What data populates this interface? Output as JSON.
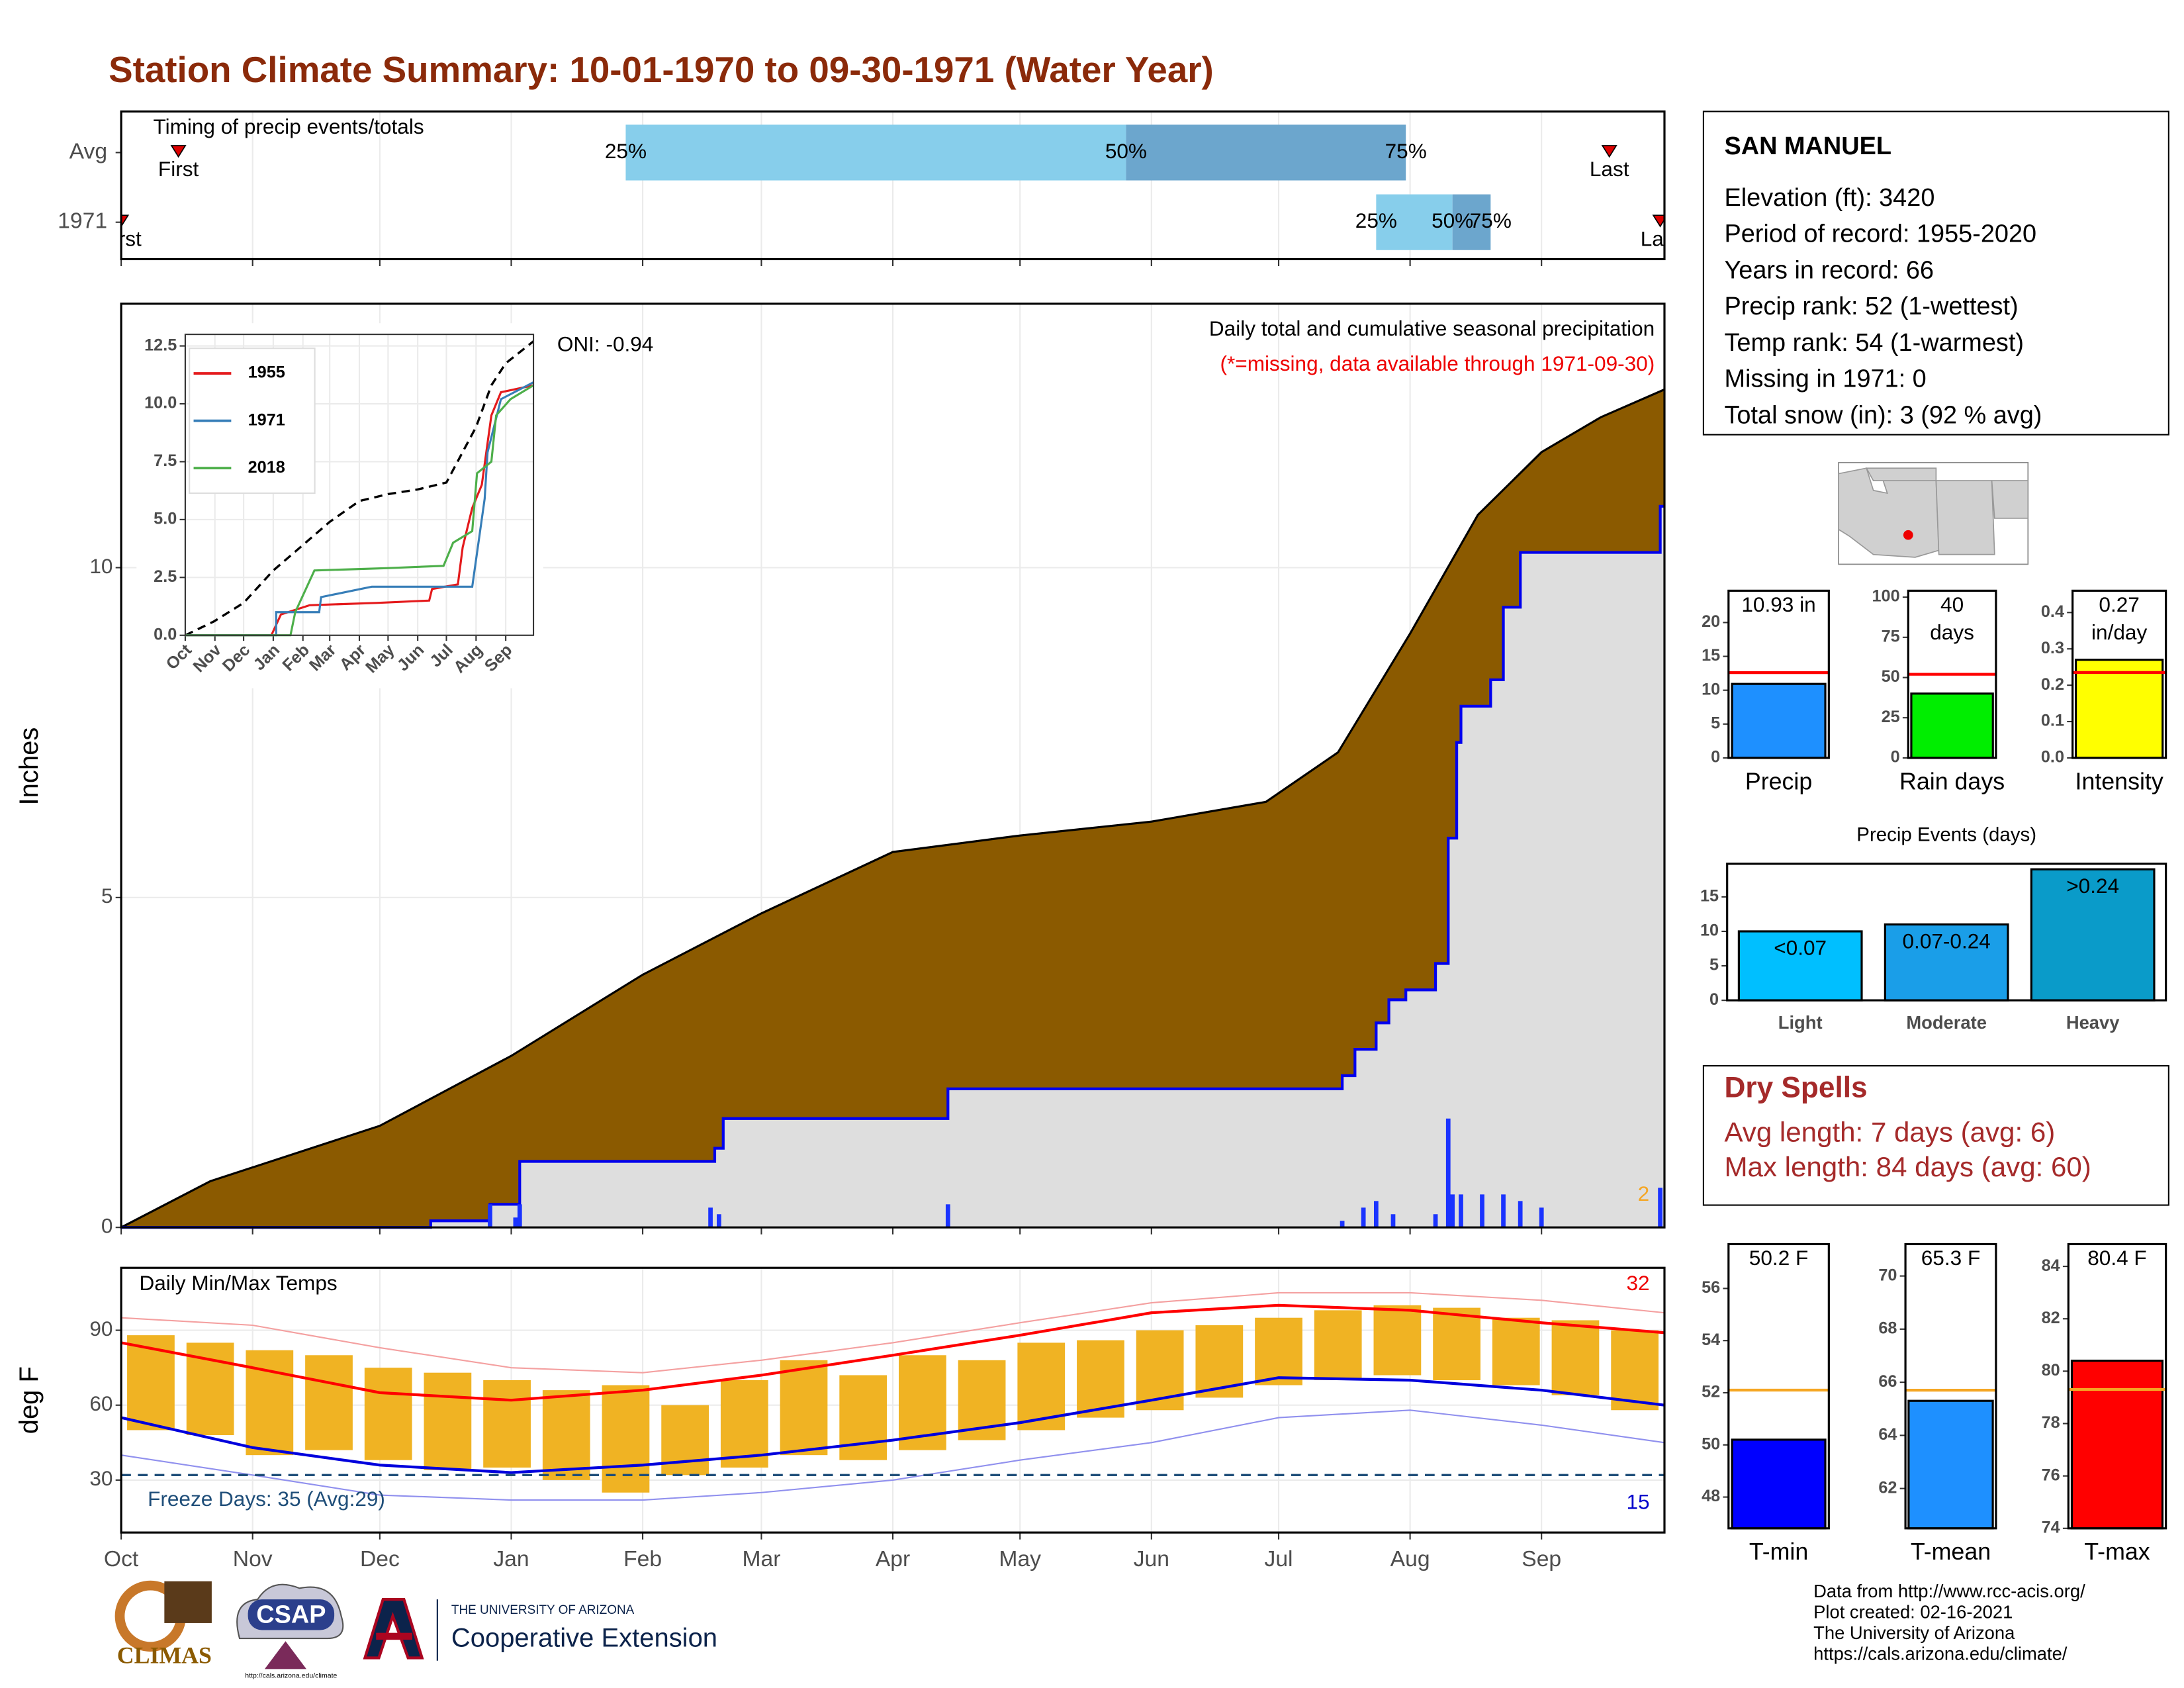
{
  "title": "Station Climate Summary: 10-01-1970 to 09-30-1971 (Water Year)",
  "chart_data": [
    {
      "type": "timeline",
      "title": "Timing of precip events/totals",
      "categories": [
        "Avg",
        "1971"
      ],
      "xlim": [
        0,
        364
      ],
      "xgrid": [
        0,
        31,
        61,
        92,
        123,
        151,
        182,
        212,
        243,
        273,
        304,
        335
      ],
      "percentiles": {
        "labels": [
          "25%",
          "50%",
          "75%"
        ],
        "rows": [
          [
            119,
            237,
            303
          ],
          [
            296,
            314,
            323
          ]
        ]
      },
      "first": [
        13.5,
        0
      ],
      "last": [
        351,
        363
      ],
      "first_label": "First",
      "last_label": "Last",
      "colors": [
        "#87ceeb",
        "#6ca6cd"
      ],
      "marker_color": "#dd0000"
    },
    {
      "type": "area",
      "title": "Daily total and cumulative seasonal precipitation",
      "subtitle": "(*=missing, data available through 1971-09-30)",
      "annotation": "ONI: -0.94",
      "ylabel": "Inches",
      "xlim": [
        0,
        364
      ],
      "ylim": [
        0,
        14
      ],
      "yticks": [
        0,
        5,
        10
      ],
      "xgrid": [
        0,
        31,
        61,
        92,
        123,
        151,
        182,
        212,
        243,
        273,
        304,
        335
      ],
      "note_count": 2,
      "normal": {
        "color": "#8b5a00",
        "x": [
          0,
          21,
          61,
          92,
          123,
          151,
          182,
          212,
          243,
          270,
          287,
          304,
          320,
          335,
          349,
          364
        ],
        "values": [
          0,
          0.7,
          1.54,
          2.6,
          3.83,
          4.76,
          5.69,
          5.94,
          6.15,
          6.45,
          7.2,
          9.0,
          10.8,
          11.75,
          12.28,
          12.7
        ]
      },
      "cumulative": {
        "color": "#0000ee",
        "fill": "#dedede",
        "x": [
          0,
          73,
          73,
          87,
          87,
          94,
          94,
          140,
          140,
          142,
          142,
          195,
          195,
          288,
          288,
          291,
          291,
          296,
          296,
          299,
          299,
          303,
          303,
          310,
          310,
          313,
          313,
          315,
          315,
          316,
          316,
          323,
          323,
          326,
          326,
          330,
          330,
          363,
          363,
          364
        ],
        "values": [
          0,
          0,
          0.1,
          0.1,
          0.35,
          0.35,
          1.0,
          1.0,
          1.2,
          1.2,
          1.65,
          1.65,
          2.1,
          2.1,
          2.3,
          2.3,
          2.7,
          2.7,
          3.1,
          3.1,
          3.45,
          3.45,
          3.6,
          3.6,
          4.0,
          4.0,
          5.9,
          5.9,
          7.35,
          7.35,
          7.9,
          7.9,
          8.3,
          8.3,
          9.4,
          9.4,
          10.23,
          10.23,
          10.93,
          10.93
        ]
      },
      "daily": {
        "color": "#1a33ff",
        "x": [
          87,
          93,
          94,
          139,
          141,
          195,
          288,
          293,
          296,
          300,
          310,
          313,
          314,
          316,
          321,
          326,
          330,
          335,
          363
        ],
        "values": [
          0.35,
          0.15,
          0.35,
          0.3,
          0.2,
          0.35,
          0.1,
          0.3,
          0.4,
          0.2,
          0.2,
          1.65,
          0.5,
          0.5,
          0.5,
          0.5,
          0.4,
          0.3,
          0.6
        ]
      }
    },
    {
      "type": "line",
      "xlim": [
        0,
        364
      ],
      "ylim": [
        0,
        13
      ],
      "xticks": [
        {
          "value": 0,
          "label": "Oct"
        },
        {
          "value": 31,
          "label": "Nov"
        },
        {
          "value": 61,
          "label": "Dec"
        },
        {
          "value": 92,
          "label": "Jan"
        },
        {
          "value": 123,
          "label": "Feb"
        },
        {
          "value": 151,
          "label": "Mar"
        },
        {
          "value": 182,
          "label": "Apr"
        },
        {
          "value": 212,
          "label": "May"
        },
        {
          "value": 243,
          "label": "Jun"
        },
        {
          "value": 273,
          "label": "Jul"
        },
        {
          "value": 304,
          "label": "Aug"
        },
        {
          "value": 335,
          "label": "Sep"
        }
      ],
      "yticks": [
        {
          "value": 0,
          "label": "0.0"
        },
        2.5,
        {
          "value": 5,
          "label": "5.0"
        },
        7.5,
        {
          "value": 10,
          "label": "10.0"
        },
        12.5
      ],
      "normal": {
        "color": "#000000",
        "x": [
          0,
          30,
          61,
          92,
          123,
          151,
          182,
          212,
          243,
          273,
          304,
          320,
          335,
          364
        ],
        "values": [
          0,
          0.6,
          1.4,
          2.8,
          3.9,
          4.9,
          5.8,
          6.1,
          6.3,
          6.6,
          9.0,
          10.8,
          11.75,
          12.7
        ]
      },
      "series": [
        {
          "name": "1955",
          "color": "#e41a1c",
          "x": [
            0,
            90,
            100,
            130,
            200,
            255,
            258,
            285,
            290,
            300,
            310,
            320,
            330,
            364
          ],
          "values": [
            0,
            0,
            0.9,
            1.3,
            1.4,
            1.5,
            2.0,
            2.2,
            3.8,
            5.5,
            6.5,
            9.5,
            10.5,
            10.8
          ]
        },
        {
          "name": "1971",
          "color": "#377eb8",
          "x": [
            0,
            95,
            95,
            140,
            142,
            195,
            300,
            313,
            316,
            330,
            364
          ],
          "values": [
            0,
            0,
            1.0,
            1.0,
            1.65,
            2.1,
            2.1,
            5.9,
            7.9,
            10.2,
            10.93
          ]
        },
        {
          "name": "2018",
          "color": "#4daf4a",
          "x": [
            0,
            110,
            115,
            135,
            210,
            270,
            280,
            300,
            305,
            320,
            325,
            340,
            364
          ],
          "values": [
            0,
            0,
            1.0,
            2.8,
            2.9,
            3.0,
            4.0,
            4.5,
            7.0,
            7.5,
            9.5,
            10.2,
            10.8
          ]
        }
      ]
    },
    {
      "type": "range",
      "title": "Daily Min/Max Temps",
      "ylabel": "deg F",
      "annotation": "Freeze Days: 35 (Avg:29)",
      "high_count": 32,
      "low_count": 15,
      "freeze_line": 32,
      "xlim": [
        0,
        364
      ],
      "ylim": [
        9,
        115
      ],
      "yticks": [
        30,
        60,
        90
      ],
      "xticks": [
        {
          "value": 0,
          "label": "Oct"
        },
        {
          "value": 31,
          "label": "Nov"
        },
        {
          "value": 61,
          "label": "Dec"
        },
        {
          "value": 92,
          "label": "Jan"
        },
        {
          "value": 123,
          "label": "Feb"
        },
        {
          "value": 151,
          "label": "Mar"
        },
        {
          "value": 182,
          "label": "Apr"
        },
        {
          "value": 212,
          "label": "May"
        },
        {
          "value": 243,
          "label": "Jun"
        },
        {
          "value": 273,
          "label": "Jul"
        },
        {
          "value": 304,
          "label": "Aug"
        },
        {
          "value": 335,
          "label": "Sep"
        }
      ],
      "color": "#f0b323",
      "x": [
        7,
        21,
        35,
        49,
        63,
        77,
        91,
        105,
        119,
        133,
        147,
        161,
        175,
        189,
        203,
        217,
        231,
        245,
        259,
        273,
        287,
        301,
        315,
        329,
        343,
        357
      ],
      "low": [
        50,
        48,
        40,
        42,
        38,
        34,
        35,
        30,
        25,
        32,
        35,
        40,
        38,
        42,
        46,
        50,
        55,
        58,
        63,
        68,
        70,
        72,
        70,
        68,
        64,
        58
      ],
      "high": [
        88,
        85,
        82,
        80,
        75,
        73,
        70,
        66,
        68,
        60,
        70,
        78,
        72,
        80,
        78,
        85,
        86,
        90,
        92,
        95,
        98,
        100,
        99,
        95,
        94,
        90
      ],
      "lines": [
        {
          "color": "#f4a0a0",
          "width": 1,
          "x": [
            0,
            31,
            61,
            92,
            123,
            151,
            182,
            212,
            243,
            273,
            304,
            335,
            364
          ],
          "values": [
            95,
            92,
            83,
            75,
            73,
            78,
            85,
            93,
            101,
            105,
            105,
            102,
            97
          ]
        },
        {
          "color": "#9090ee",
          "width": 1,
          "x": [
            0,
            31,
            61,
            92,
            123,
            151,
            182,
            212,
            243,
            273,
            304,
            335,
            364
          ],
          "values": [
            40,
            32,
            24,
            22,
            22,
            25,
            30,
            38,
            45,
            55,
            58,
            52,
            45
          ]
        },
        {
          "color": "#ff0000",
          "width": 2,
          "x": [
            0,
            31,
            61,
            92,
            123,
            151,
            182,
            212,
            243,
            273,
            304,
            335,
            364
          ],
          "values": [
            85,
            75,
            65,
            62,
            66,
            72,
            80,
            88,
            97,
            100,
            98,
            93,
            89
          ]
        },
        {
          "color": "#0000dd",
          "width": 2,
          "x": [
            0,
            31,
            61,
            92,
            123,
            151,
            182,
            212,
            243,
            273,
            304,
            335,
            364
          ],
          "values": [
            55,
            43,
            36,
            33,
            36,
            40,
            46,
            53,
            62,
            71,
            70,
            66,
            60
          ]
        }
      ]
    },
    {
      "type": "bar",
      "categories": [
        "Precip"
      ],
      "values": [
        10.93
      ],
      "value_labels": [
        "10.93 in"
      ],
      "average": 12.6,
      "average_color": "#ff0000",
      "color": "#1e90ff",
      "ylim": [
        0,
        24.7
      ],
      "yticks": [
        0,
        5,
        10,
        15,
        20
      ]
    },
    {
      "type": "bar",
      "categories": [
        "Rain days"
      ],
      "values": [
        40
      ],
      "value_labels": [
        "40 days"
      ],
      "average": 52,
      "average_color": "#ff0000",
      "color": "#00ee00",
      "ylim": [
        0,
        104
      ],
      "yticks": [
        0,
        25,
        50,
        75,
        100
      ]
    },
    {
      "type": "bar",
      "categories": [
        "Intensity"
      ],
      "values": [
        0.27
      ],
      "value_labels": [
        "0.27 in/day"
      ],
      "average": 0.235,
      "average_color": "#ff0000",
      "color": "#ffff00",
      "ylim": [
        0,
        0.46
      ],
      "yticks": [
        {
          "value": 0,
          "label": "0.0"
        },
        0.1,
        0.2,
        0.3,
        0.4
      ]
    },
    {
      "type": "bar",
      "title": "Precip Events (days)",
      "categories": [
        "Light",
        "Moderate",
        "Heavy"
      ],
      "values": [
        10,
        11,
        19
      ],
      "bar_labels": [
        "<0.07",
        "0.07-0.24",
        ">0.24"
      ],
      "colors": [
        "#00bfff",
        "#1a9ee8",
        "#0a9bc9"
      ],
      "ylim": [
        0,
        19.8
      ],
      "yticks": [
        0,
        5,
        10,
        15
      ]
    },
    {
      "type": "bar",
      "categories": [
        "T-min"
      ],
      "values": [
        50.2
      ],
      "value_labels": [
        "50.2 F"
      ],
      "average": 52.1,
      "average_color": "#f5a623",
      "color": "#0000ff",
      "ylim": [
        46.8,
        57.7
      ],
      "yticks": [
        48,
        50,
        52,
        54,
        56
      ]
    },
    {
      "type": "bar",
      "categories": [
        "T-mean"
      ],
      "values": [
        65.3
      ],
      "value_labels": [
        "65.3 F"
      ],
      "average": 65.7,
      "average_color": "#f5a623",
      "color": "#1e90ff",
      "ylim": [
        60.5,
        71.2
      ],
      "yticks": [
        62,
        64,
        66,
        68,
        70
      ]
    },
    {
      "type": "bar",
      "categories": [
        "T-max"
      ],
      "values": [
        80.4
      ],
      "value_labels": [
        "80.4 F"
      ],
      "average": 79.3,
      "average_color": "#f5a623",
      "color": "#ff0000",
      "ylim": [
        74,
        84.85
      ],
      "yticks": [
        74,
        76,
        78,
        80,
        82,
        84
      ]
    }
  ],
  "station": {
    "name": "SAN MANUEL",
    "lines": [
      "Elevation (ft): 3420",
      "Period of record: 1955-2020",
      "Years in record: 66",
      "Precip rank: 52 (1-wettest)",
      "Temp rank: 54 (1-warmest)",
      "Missing in 1971: 0",
      "Total snow (in): 3 (92 % avg)"
    ]
  },
  "dry_spells": {
    "title": "Dry Spells",
    "lines": [
      "Avg length: 7 days (avg: 6)",
      "Max length: 84 days (avg: 60)"
    ]
  },
  "footer": [
    "Data from http://www.rcc-acis.org/",
    "Plot created: 02-16-2021",
    "The University of Arizona",
    "https://cals.arizona.edu/climate/"
  ],
  "logos": {
    "climas": "CLIMAS",
    "csap": "CSAP",
    "csap_url": "http://cals.arizona.edu/climate",
    "ua": "THE UNIVERSITY OF ARIZONA",
    "extension": "Cooperative Extension"
  }
}
